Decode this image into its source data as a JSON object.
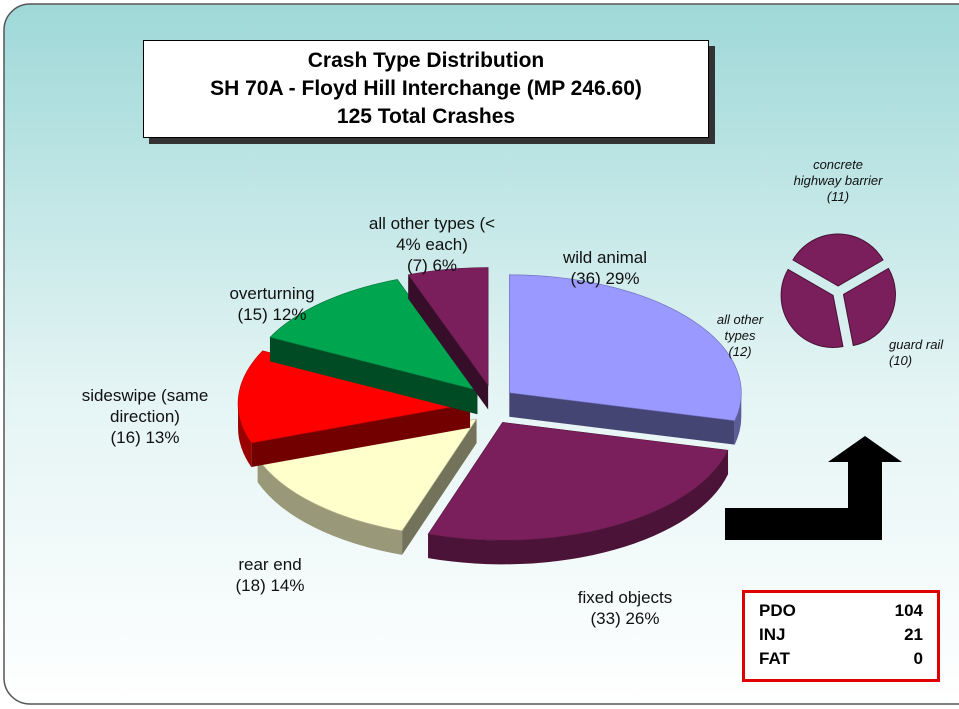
{
  "chart_data": [
    {
      "type": "pie3d",
      "title": "Crash Type Distribution",
      "subtitle": "SH 70A - Floyd Hill Interchange (MP 246.60)",
      "annotation": "125 Total Crashes",
      "categories": [
        "wild animal",
        "fixed objects",
        "rear end",
        "sideswipe (same direction)",
        "overturning",
        "all other types (< 4% each)"
      ],
      "values": [
        36,
        33,
        18,
        16,
        15,
        7
      ],
      "value_labels": [
        "(36) 29%",
        "(33) 26%",
        "(18) 14%",
        "(16) 13%",
        "(15) 12%",
        "(7) 6%"
      ],
      "colors": [
        "#9999ff",
        "#7b1f5c",
        "#ffffcc",
        "#ff0000",
        "#00a550",
        "#7b1f5c"
      ]
    },
    {
      "type": "pie",
      "categories": [
        "concrete highway barrier",
        "guard rail",
        "all other types"
      ],
      "values": [
        11,
        10,
        12
      ],
      "value_labels": [
        "(11)",
        "(10)",
        "(12)"
      ],
      "color": "#7b1f5c"
    }
  ],
  "table": {
    "rows": [
      [
        "PDO",
        104
      ],
      [
        "INJ",
        21
      ],
      [
        "FAT",
        0
      ]
    ]
  }
}
